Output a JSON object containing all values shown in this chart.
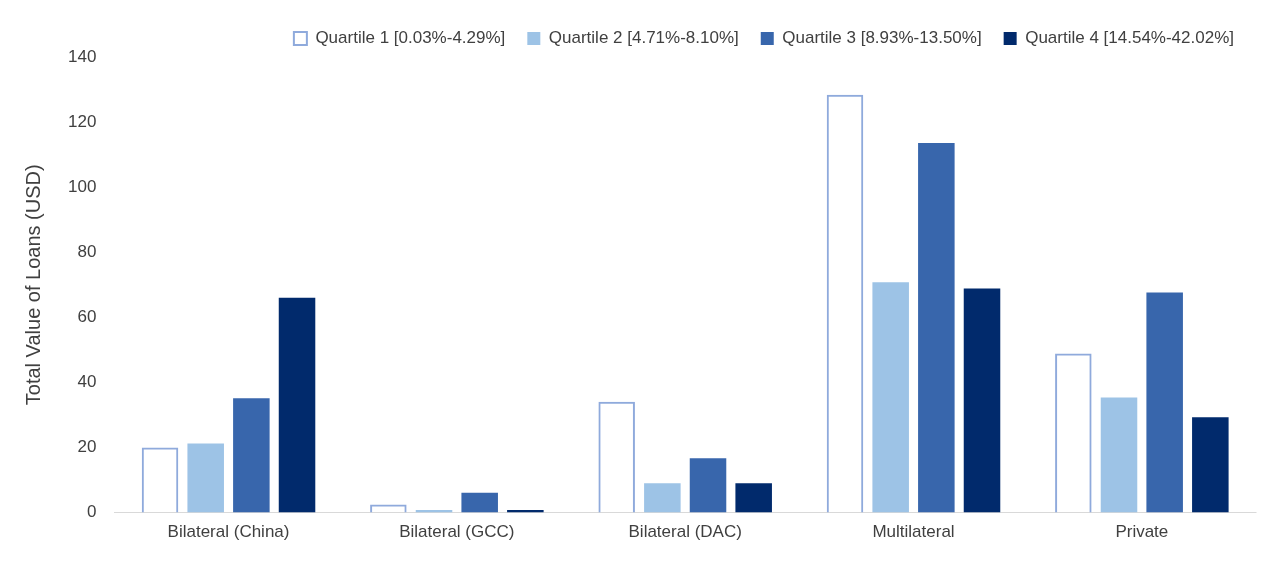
{
  "chart_data": {
    "type": "bar",
    "ylabel": "Total Value of Loans (USD)",
    "categories": [
      "Bilateral (China)",
      "Bilateral (GCC)",
      "Bilateral (DAC)",
      "Multilateral",
      "Private"
    ],
    "series": [
      {
        "name": "Quartile 1 [0.03%-4.29%]",
        "color": "#8faadc",
        "values": [
          20,
          2.5,
          34.1,
          128.4,
          48.9
        ]
      },
      {
        "name": "Quartile 2 [4.71%-8.10%]",
        "color": "#9dc3e6",
        "values": [
          21.2,
          0.8,
          9,
          70.8,
          35.4
        ]
      },
      {
        "name": "Quartile 3 [8.93%-13.50%]",
        "color": "#3866ac",
        "values": [
          35.1,
          6.1,
          16.7,
          113.6,
          67.6
        ]
      },
      {
        "name": "Quartile 4 [14.54%-42.02%]",
        "color": "#012a6c",
        "values": [
          66,
          0.8,
          9,
          68.9,
          29.3
        ]
      }
    ],
    "ylim": [
      0,
      140
    ],
    "yticks": [
      0,
      20,
      40,
      60,
      80,
      100,
      120,
      140
    ],
    "grid": false,
    "legend": "top"
  }
}
